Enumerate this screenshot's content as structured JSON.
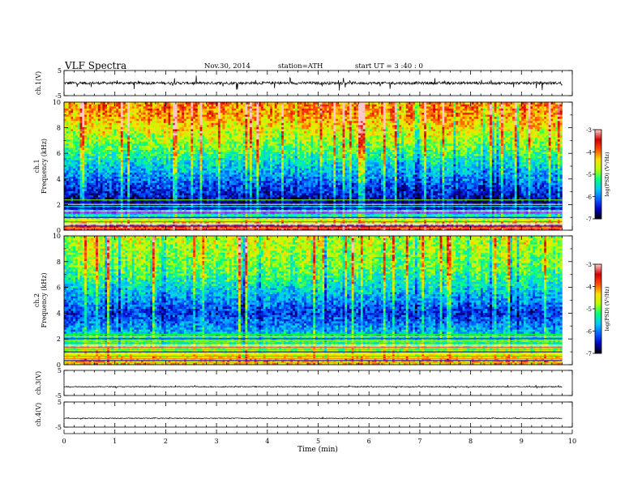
{
  "header": {
    "title": "VLF  Spectra",
    "date": "Nov.30, 2014",
    "station": "station=ATH",
    "start": "start  UT  =   3  :40 : 0"
  },
  "chart_data": [
    {
      "type": "line",
      "name": "ch1-waveform",
      "ylabel": "ch.1(V)",
      "ylim": [
        -5,
        5
      ],
      "y_ticks": [
        "5",
        "-5"
      ],
      "xlim": [
        0,
        10
      ],
      "x_end": 9.8,
      "mean": 0,
      "noise_amplitude": 0.9,
      "spike_amplitude": 2.8
    },
    {
      "type": "heatmap",
      "name": "ch1-spectrogram",
      "ylabel": "ch.1\nFrequency  (kHz)",
      "ylabel_lines": [
        "ch.1",
        "Frequency  (kHz)"
      ],
      "ylim": [
        0,
        10
      ],
      "y_ticks": [
        "0",
        "2",
        "4",
        "6",
        "8",
        "10"
      ],
      "xlim": [
        0,
        10
      ],
      "x_end": 9.8,
      "colorbar": {
        "label": "log(PSD) (V²/Hz)",
        "range": [
          -7,
          -3
        ],
        "ticks": [
          "-3",
          "-4",
          "-5",
          "-6",
          "-7"
        ]
      },
      "profile_log_psd": [
        {
          "freq_khz": 0.2,
          "value": -3.6
        },
        {
          "freq_khz": 1.0,
          "value": -5.2
        },
        {
          "freq_khz": 2.0,
          "value": -6.7
        },
        {
          "freq_khz": 3.5,
          "value": -6.2
        },
        {
          "freq_khz": 5.0,
          "value": -5.6
        },
        {
          "freq_khz": 7.0,
          "value": -4.8
        },
        {
          "freq_khz": 9.0,
          "value": -4.1
        },
        {
          "freq_khz": 10.0,
          "value": -4.0
        }
      ]
    },
    {
      "type": "heatmap",
      "name": "ch2-spectrogram",
      "ylabel": "ch.2\nFrequency  (kHz)",
      "ylabel_lines": [
        "ch.2",
        "Frequency  (kHz)"
      ],
      "ylim": [
        0,
        10
      ],
      "y_ticks": [
        "0",
        "2",
        "4",
        "6",
        "8",
        "10"
      ],
      "xlim": [
        0,
        10
      ],
      "x_end": 9.8,
      "colorbar": {
        "label": "log(PSD) (V²/Hz)",
        "range": [
          -7,
          -3
        ],
        "ticks": [
          "-3",
          "-4",
          "-5",
          "-6",
          "-7"
        ]
      },
      "profile_log_psd": [
        {
          "freq_khz": 0.2,
          "value": -4.2
        },
        {
          "freq_khz": 1.5,
          "value": -5.0
        },
        {
          "freq_khz": 2.5,
          "value": -5.7
        },
        {
          "freq_khz": 4.0,
          "value": -6.3
        },
        {
          "freq_khz": 5.5,
          "value": -5.7
        },
        {
          "freq_khz": 7.5,
          "value": -5.0
        },
        {
          "freq_khz": 9.5,
          "value": -4.7
        },
        {
          "freq_khz": 10.0,
          "value": -4.7
        }
      ]
    },
    {
      "type": "line",
      "name": "ch3-waveform",
      "ylabel": "ch.3(V)",
      "ylim": [
        -5,
        5
      ],
      "y_ticks": [
        "5",
        "-5"
      ],
      "xlim": [
        0,
        10
      ],
      "x_end": 9.8,
      "mean": -1.5,
      "noise_amplitude": 0.3,
      "spike_amplitude": 0.5
    },
    {
      "type": "line",
      "name": "ch4-waveform",
      "ylabel": "ch.4(V)",
      "ylim": [
        -5,
        5
      ],
      "y_ticks": [
        "5",
        "-5"
      ],
      "xlim": [
        0,
        10
      ],
      "x_end": 9.8,
      "mean": -1.5,
      "noise_amplitude": 0.25,
      "spike_amplitude": 0.3
    }
  ],
  "xaxis": {
    "label": "Time  (min)",
    "ticks": [
      "0",
      "1",
      "2",
      "3",
      "4",
      "5",
      "6",
      "7",
      "8",
      "9",
      "10"
    ]
  },
  "colormap": [
    "#000000",
    "#0000c0",
    "#0060ff",
    "#00c8ff",
    "#00ff80",
    "#b4ff00",
    "#ffe000",
    "#ff5000",
    "#d00000",
    "#ffc8c8"
  ]
}
